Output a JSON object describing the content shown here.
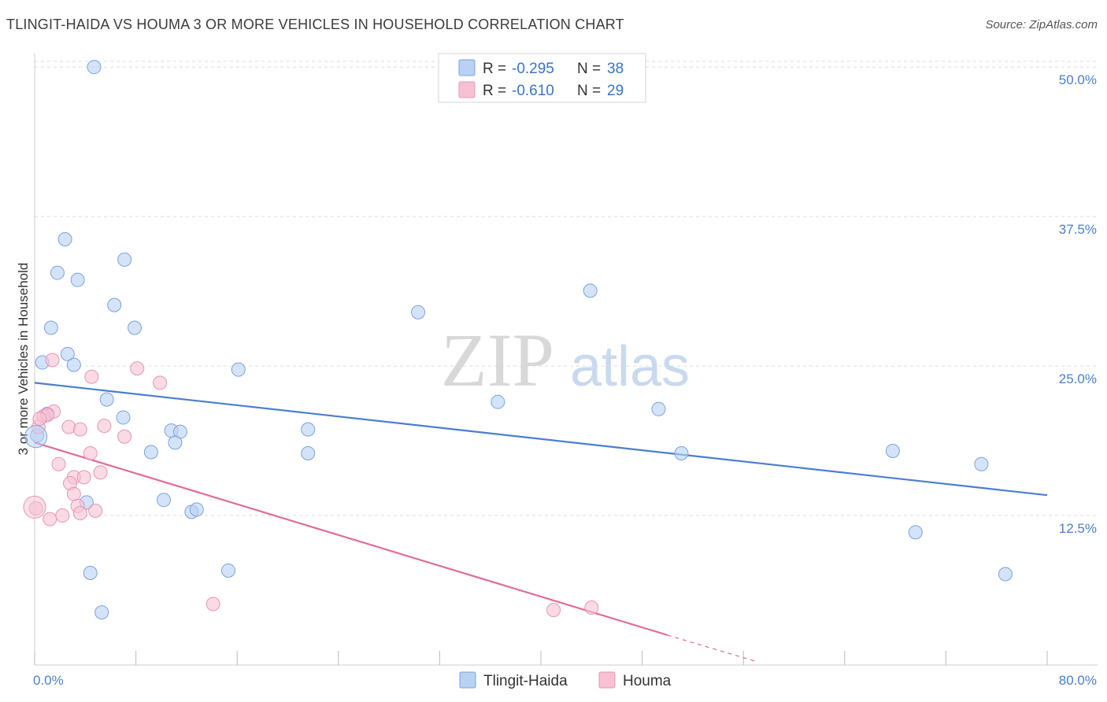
{
  "title": "TLINGIT-HAIDA VS HOUMA 3 OR MORE VEHICLES IN HOUSEHOLD CORRELATION CHART",
  "source": "Source: ZipAtlas.com",
  "watermark": {
    "zip": "ZIP",
    "atlas": "atlas"
  },
  "colors": {
    "blue": "#4a7fd0",
    "blue_fill": "#b9d1f3",
    "pink": "#e06c98",
    "pink_fill": "#f6c1d3",
    "axis_label": "#4a7fcf",
    "grid": "#dddddd"
  },
  "legend": {
    "r_label": "R =",
    "n_label": "N =",
    "series": [
      {
        "r": "-0.295",
        "n": "38"
      },
      {
        "r": "-0.610",
        "n": "29"
      }
    ]
  },
  "chart_data": {
    "type": "scatter",
    "title": "TLINGIT-HAIDA VS HOUMA 3 OR MORE VEHICLES IN HOUSEHOLD CORRELATION CHART",
    "xlabel": "",
    "ylabel": "3 or more Vehicles in Household",
    "xlim": [
      0,
      80
    ],
    "ylim": [
      0,
      51
    ],
    "x_tick_labels": [
      "0.0%",
      "80.0%"
    ],
    "y_ticks": [
      12.5,
      25.0,
      37.5,
      50.0
    ],
    "y_tick_labels": [
      "12.5%",
      "25.0%",
      "37.5%",
      "50.0%"
    ],
    "grid": true,
    "legend_position": "top-center",
    "series": [
      {
        "name": "Tlingit-Haida",
        "color": "#4a7fd0",
        "points": [
          [
            4.7,
            50.0
          ],
          [
            2.4,
            35.6
          ],
          [
            1.8,
            32.8
          ],
          [
            3.4,
            32.2
          ],
          [
            7.1,
            33.9
          ],
          [
            6.3,
            30.1
          ],
          [
            1.3,
            28.2
          ],
          [
            7.9,
            28.2
          ],
          [
            2.6,
            26.0
          ],
          [
            0.6,
            25.3
          ],
          [
            3.1,
            25.1
          ],
          [
            16.1,
            24.7
          ],
          [
            5.7,
            22.2
          ],
          [
            7.0,
            20.7
          ],
          [
            10.8,
            19.6
          ],
          [
            11.5,
            19.5
          ],
          [
            11.1,
            18.6
          ],
          [
            9.2,
            17.8
          ],
          [
            21.6,
            19.7
          ],
          [
            21.6,
            17.7
          ],
          [
            0.2,
            19.2
          ],
          [
            4.1,
            13.6
          ],
          [
            10.2,
            13.8
          ],
          [
            12.4,
            12.8
          ],
          [
            12.8,
            13.0
          ],
          [
            4.4,
            7.7
          ],
          [
            15.3,
            7.9
          ],
          [
            5.3,
            4.4
          ],
          [
            30.3,
            29.5
          ],
          [
            43.9,
            31.3
          ],
          [
            36.6,
            22.0
          ],
          [
            49.3,
            21.4
          ],
          [
            51.1,
            17.7
          ],
          [
            67.8,
            17.9
          ],
          [
            74.8,
            16.8
          ],
          [
            69.6,
            11.1
          ],
          [
            76.7,
            7.6
          ],
          [
            1.0,
            21.0
          ]
        ],
        "trend": {
          "x": [
            0,
            80
          ],
          "y": [
            23.6,
            14.2
          ]
        }
      },
      {
        "name": "Houma",
        "color": "#e06c98",
        "points": [
          [
            1.4,
            25.5
          ],
          [
            4.5,
            24.1
          ],
          [
            8.1,
            24.8
          ],
          [
            9.9,
            23.6
          ],
          [
            1.5,
            21.2
          ],
          [
            0.7,
            20.8
          ],
          [
            1.0,
            20.9
          ],
          [
            2.7,
            19.9
          ],
          [
            3.6,
            19.7
          ],
          [
            5.5,
            20.0
          ],
          [
            7.1,
            19.1
          ],
          [
            0.3,
            19.9
          ],
          [
            4.4,
            17.7
          ],
          [
            1.9,
            16.8
          ],
          [
            5.2,
            16.1
          ],
          [
            3.1,
            15.7
          ],
          [
            3.9,
            15.7
          ],
          [
            2.8,
            15.2
          ],
          [
            3.1,
            14.3
          ],
          [
            3.4,
            13.3
          ],
          [
            4.8,
            12.9
          ],
          [
            3.6,
            12.7
          ],
          [
            2.2,
            12.5
          ],
          [
            1.2,
            12.2
          ],
          [
            0.1,
            13.1
          ],
          [
            14.1,
            5.1
          ],
          [
            41.0,
            4.6
          ],
          [
            44.0,
            4.8
          ],
          [
            0.4,
            20.6
          ]
        ],
        "trend": {
          "x": [
            0,
            50
          ],
          "y": [
            18.6,
            2.5
          ]
        },
        "trend_extension": {
          "x": [
            50,
            57
          ],
          "y": [
            2.5,
            0.3
          ]
        }
      }
    ]
  },
  "bottom_legend": [
    "Tlingit-Haida",
    "Houma"
  ]
}
